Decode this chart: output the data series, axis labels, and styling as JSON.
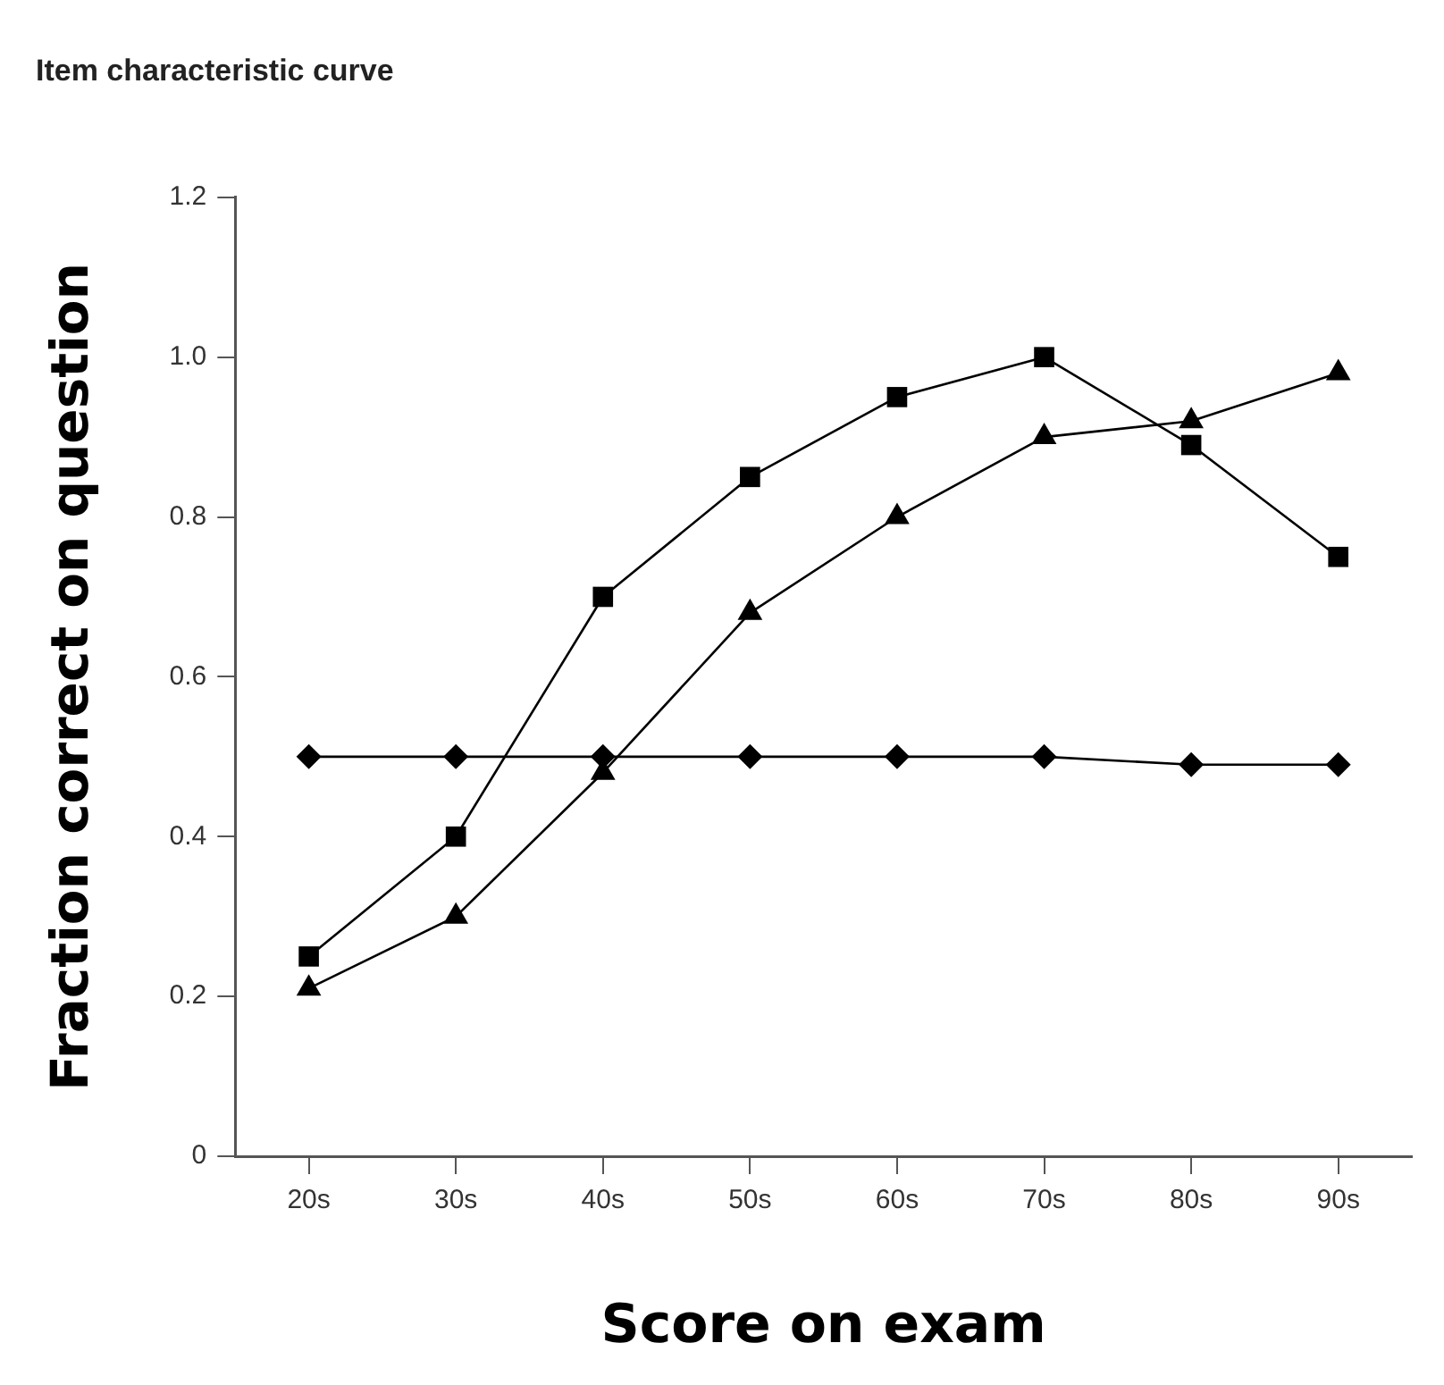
{
  "chart_data": {
    "type": "line",
    "title": "Item characteristic curve",
    "xlabel": "Score on exam",
    "ylabel": "Fraction correct on question",
    "categories": [
      "20s",
      "30s",
      "40s",
      "50s",
      "60s",
      "70s",
      "80s",
      "90s"
    ],
    "series": [
      {
        "color": "#000000",
        "marker": "square",
        "values": [
          0.25,
          0.4,
          0.7,
          0.85,
          0.95,
          1.0,
          0.89,
          0.75
        ]
      },
      {
        "color": "#000000",
        "marker": "triangle",
        "values": [
          0.21,
          0.3,
          0.48,
          0.68,
          0.8,
          0.9,
          0.92,
          0.98
        ]
      },
      {
        "color": "#000000",
        "marker": "diamond",
        "values": [
          0.5,
          0.5,
          0.5,
          0.5,
          0.5,
          0.5,
          0.49,
          0.49
        ]
      }
    ],
    "ylim": [
      0,
      1.2
    ],
    "yticks": [
      {
        "value": 0,
        "label": "0"
      },
      {
        "value": 0.2,
        "label": "0.2"
      },
      {
        "value": 0.4,
        "label": "0.4"
      },
      {
        "value": 0.6,
        "label": "0.6"
      },
      {
        "value": 0.8,
        "label": "0.8"
      },
      {
        "value": 1.0,
        "label": "1.0"
      },
      {
        "value": 1.2,
        "label": "1.2"
      }
    ],
    "grid": false,
    "legend": false,
    "line_style": "solid"
  }
}
